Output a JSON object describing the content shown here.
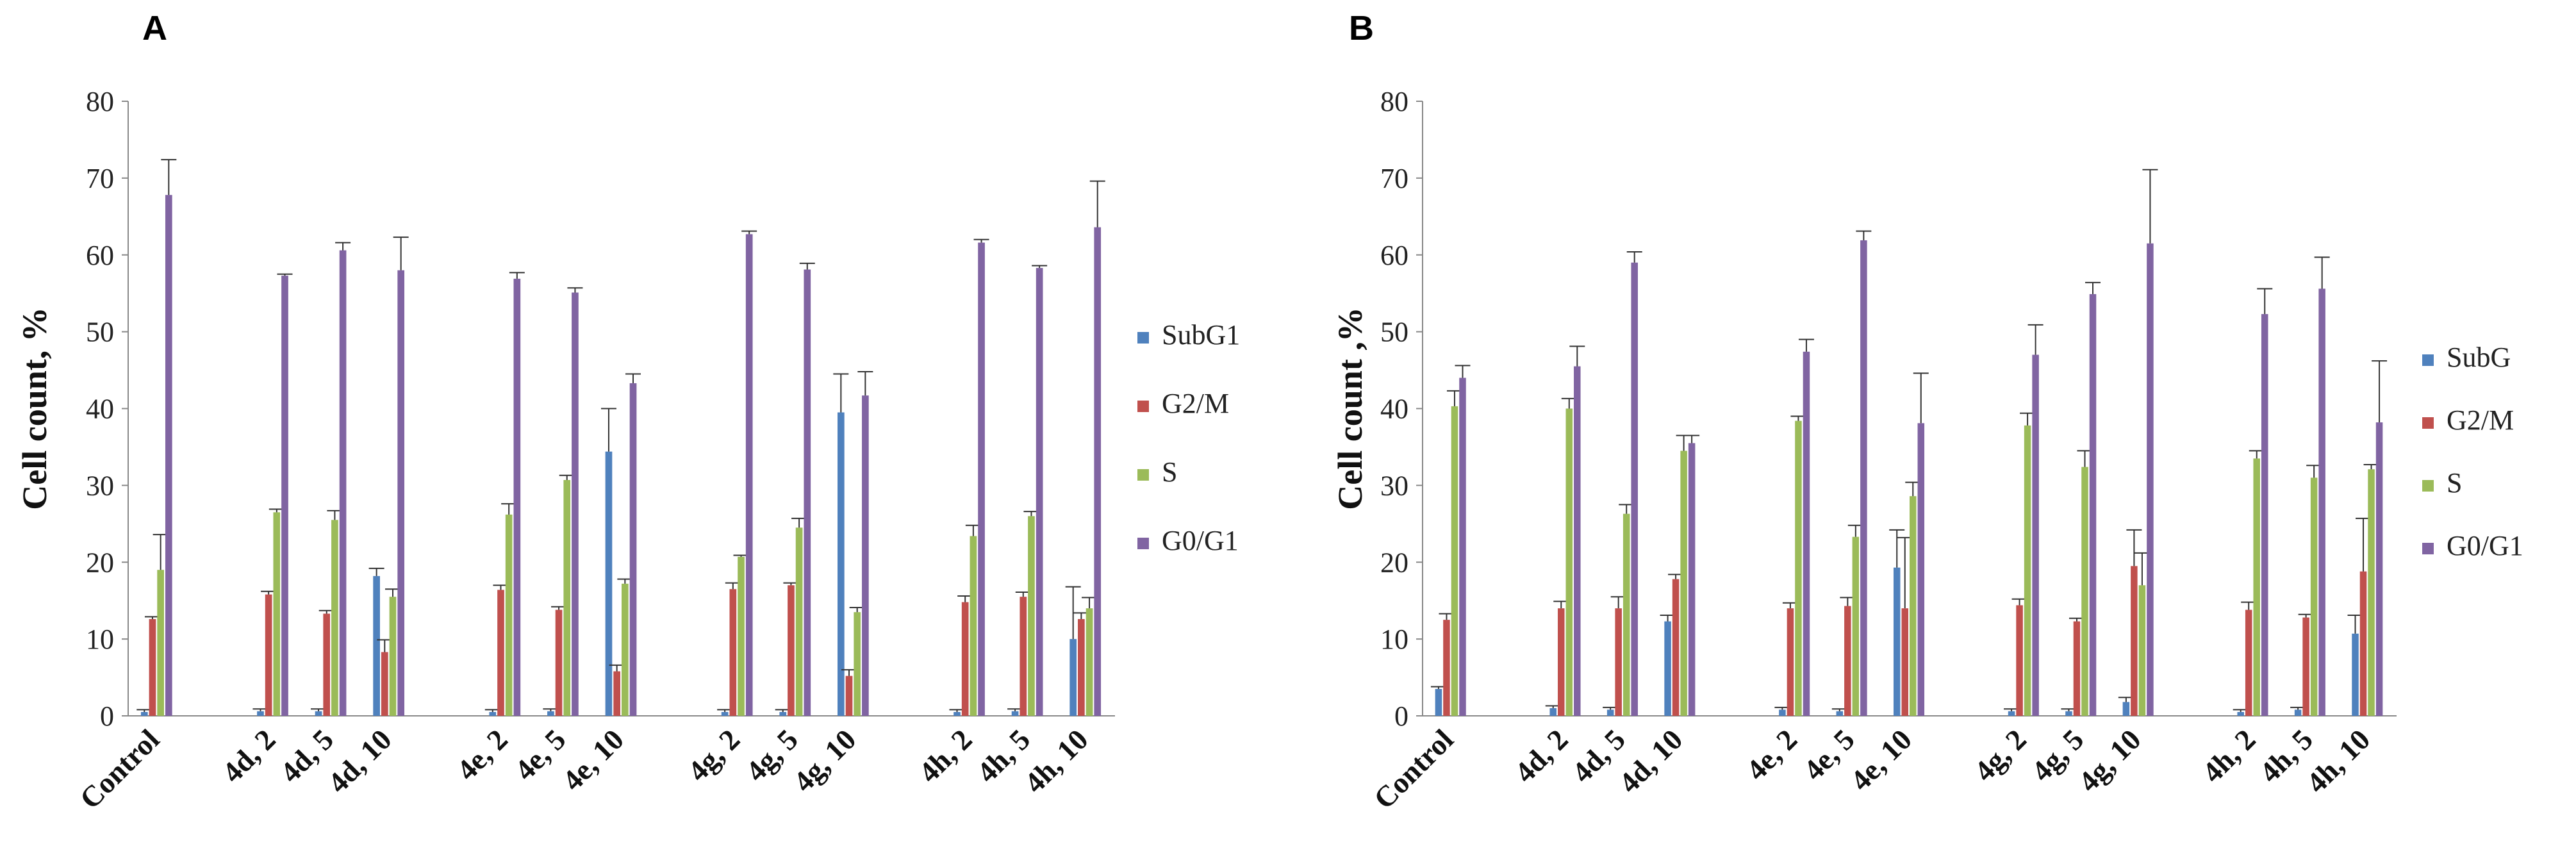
{
  "chart_data": [
    {
      "panel": "A",
      "type": "bar",
      "ylabel": "Cell count, %",
      "ylim": [
        0,
        80
      ],
      "yticks": [
        0,
        10,
        20,
        30,
        40,
        50,
        60,
        70,
        80
      ],
      "groups": [
        [
          "Control"
        ],
        [
          "4d, 2",
          "4d, 5",
          "4d, 10"
        ],
        [
          "4e, 2",
          "4e, 5",
          "4e, 10"
        ],
        [
          "4g, 2",
          "4g, 5",
          "4g, 10"
        ],
        [
          "4h, 2",
          "4h, 5",
          "4h, 10"
        ]
      ],
      "categories": [
        "Control",
        "4d, 2",
        "4d, 5",
        "4d, 10",
        "4e, 2",
        "4e, 5",
        "4e, 10",
        "4g, 2",
        "4g, 5",
        "4g, 10",
        "4h, 2",
        "4h, 5",
        "4h, 10"
      ],
      "series": [
        {
          "name": "SubG1",
          "color": "#4f81bd",
          "values": [
            0.5,
            0.6,
            0.6,
            18.2,
            0.5,
            0.6,
            34.4,
            0.5,
            0.5,
            39.5,
            0.5,
            0.6,
            10.0
          ],
          "errors": [
            0.3,
            0.3,
            0.3,
            1.0,
            0.3,
            0.3,
            5.6,
            0.3,
            0.3,
            5.0,
            0.3,
            0.3,
            6.8
          ]
        },
        {
          "name": "G2/M",
          "color": "#c0504d",
          "values": [
            12.6,
            15.8,
            13.3,
            8.3,
            16.4,
            13.8,
            5.8,
            16.5,
            17.0,
            5.2,
            14.8,
            15.5,
            12.6
          ],
          "errors": [
            0.3,
            0.4,
            0.4,
            1.6,
            0.6,
            0.4,
            0.8,
            0.8,
            0.3,
            0.8,
            0.8,
            0.6,
            0.8
          ]
        },
        {
          "name": "S",
          "color": "#9bbb59",
          "values": [
            19.0,
            26.5,
            25.5,
            15.5,
            26.2,
            30.7,
            17.2,
            20.7,
            24.5,
            13.5,
            23.4,
            26.0,
            14.0
          ],
          "errors": [
            4.6,
            0.4,
            1.2,
            1.0,
            1.4,
            0.6,
            0.6,
            0.2,
            1.2,
            0.6,
            1.4,
            0.6,
            1.4
          ]
        },
        {
          "name": "G0/G1",
          "color": "#8064a2",
          "values": [
            67.8,
            57.3,
            60.6,
            58.0,
            56.9,
            55.1,
            43.3,
            62.7,
            58.1,
            41.7,
            61.6,
            58.3,
            63.6
          ],
          "errors": [
            4.6,
            0.2,
            1.0,
            4.3,
            0.8,
            0.6,
            1.2,
            0.4,
            0.8,
            3.1,
            0.4,
            0.3,
            6.0
          ]
        }
      ]
    },
    {
      "panel": "B",
      "type": "bar",
      "ylabel": "Cell count ,%",
      "ylim": [
        0,
        80
      ],
      "yticks": [
        0,
        10,
        20,
        30,
        40,
        50,
        60,
        70,
        80
      ],
      "groups": [
        [
          "Control"
        ],
        [
          "4d, 2",
          "4d, 5",
          "4d, 10"
        ],
        [
          "4e, 2",
          "4e, 5",
          "4e, 10"
        ],
        [
          "4g, 2",
          "4g, 5",
          "4g, 10"
        ],
        [
          "4h, 2",
          "4h, 5",
          "4h, 10"
        ]
      ],
      "categories": [
        "Control",
        "4d, 2",
        "4d, 5",
        "4d, 10",
        "4e, 2",
        "4e, 5",
        "4e, 10",
        "4g, 2",
        "4g, 5",
        "4g, 10",
        "4h, 2",
        "4h, 5",
        "4h, 10"
      ],
      "series": [
        {
          "name": "SubG",
          "color": "#4f81bd",
          "values": [
            3.5,
            1.0,
            0.8,
            12.3,
            0.8,
            0.6,
            19.3,
            0.6,
            0.6,
            1.8,
            0.5,
            0.8,
            10.7
          ],
          "errors": [
            0.3,
            0.3,
            0.3,
            0.8,
            0.3,
            0.3,
            4.9,
            0.3,
            0.3,
            0.6,
            0.3,
            0.3,
            2.4
          ]
        },
        {
          "name": "G2/M",
          "color": "#c0504d",
          "values": [
            12.5,
            14.0,
            14.0,
            17.8,
            14.0,
            14.3,
            14.0,
            14.4,
            12.3,
            19.5,
            13.8,
            12.8,
            18.8
          ],
          "errors": [
            0.8,
            0.9,
            1.5,
            0.6,
            0.7,
            1.1,
            9.2,
            0.8,
            0.4,
            4.7,
            1.0,
            0.4,
            6.9
          ]
        },
        {
          "name": "S",
          "color": "#9bbb59",
          "values": [
            40.3,
            40.0,
            26.3,
            34.5,
            38.4,
            23.3,
            28.6,
            37.8,
            32.4,
            17.0,
            33.5,
            31.0,
            32.1
          ],
          "errors": [
            2.0,
            1.3,
            1.2,
            2.0,
            0.6,
            1.5,
            1.8,
            1.6,
            2.1,
            4.2,
            1.0,
            1.6,
            0.6
          ]
        },
        {
          "name": "G0/G1",
          "color": "#8064a2",
          "values": [
            44.0,
            45.5,
            59.0,
            35.5,
            47.4,
            61.9,
            38.1,
            47.0,
            54.9,
            61.5,
            52.3,
            55.6,
            38.2
          ],
          "errors": [
            1.6,
            2.6,
            1.4,
            1.0,
            1.6,
            1.2,
            6.5,
            3.9,
            1.5,
            9.6,
            3.3,
            4.1,
            8.0
          ]
        }
      ]
    }
  ]
}
